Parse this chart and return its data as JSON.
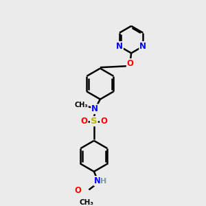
{
  "bg_color": "#ebebeb",
  "atom_colors": {
    "C": "#000000",
    "N": "#0000ff",
    "O": "#ff0000",
    "S": "#b8b800",
    "H": "#7a9a9a"
  },
  "bond_color": "#000000",
  "bond_width": 1.8,
  "font_size_atom": 8.5,
  "font_size_small": 7.5
}
